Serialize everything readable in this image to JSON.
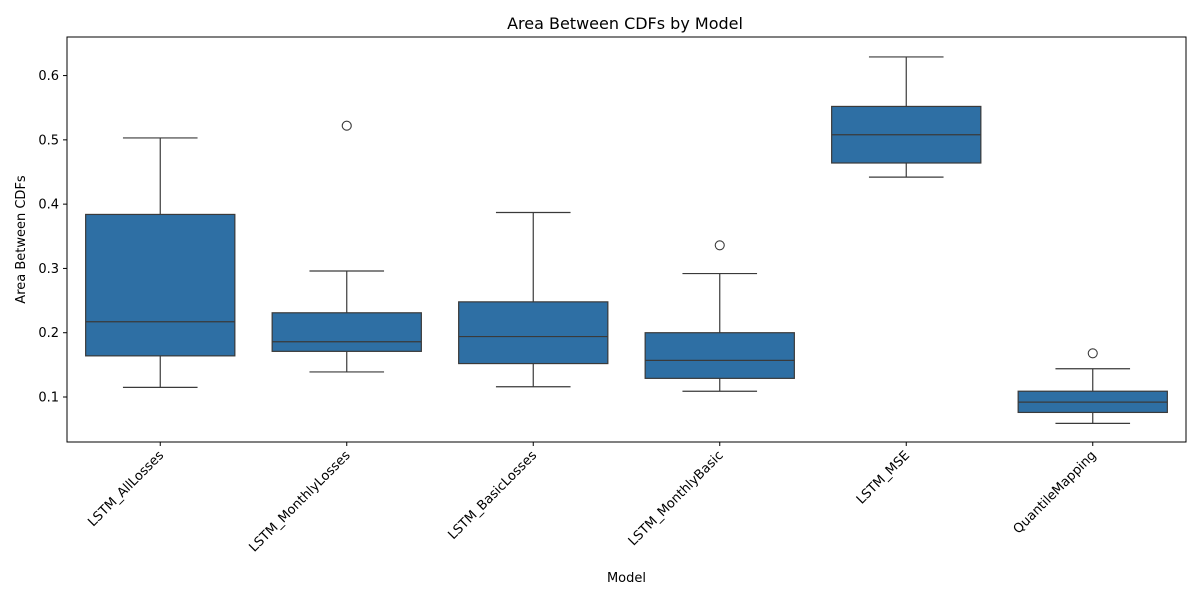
{
  "chart_data": {
    "type": "box",
    "title": "Area Between CDFs by Model",
    "xlabel": "Model",
    "ylabel": "Area Between CDFs",
    "ylim": [
      0.03,
      0.66
    ],
    "yticks": [
      "0.1",
      "0.2",
      "0.3",
      "0.4",
      "0.5",
      "0.6"
    ],
    "grid": false,
    "categories": [
      "LSTM_AllLosses",
      "LSTM_MonthlyLosses",
      "LSTM_BasicLosses",
      "LSTM_MonthlyBasic",
      "LSTM_MSE",
      "QuantileMapping"
    ],
    "series": [
      {
        "color": "#2e6fa4",
        "boxes": [
          {
            "whisker_low": 0.115,
            "q1": 0.164,
            "median": 0.217,
            "q3": 0.384,
            "whisker_high": 0.503,
            "outliers": []
          },
          {
            "whisker_low": 0.139,
            "q1": 0.171,
            "median": 0.186,
            "q3": 0.231,
            "whisker_high": 0.296,
            "outliers": [
              0.522
            ]
          },
          {
            "whisker_low": 0.116,
            "q1": 0.152,
            "median": 0.194,
            "q3": 0.248,
            "whisker_high": 0.387,
            "outliers": []
          },
          {
            "whisker_low": 0.109,
            "q1": 0.129,
            "median": 0.157,
            "q3": 0.2,
            "whisker_high": 0.292,
            "outliers": [
              0.336
            ]
          },
          {
            "whisker_low": 0.442,
            "q1": 0.464,
            "median": 0.508,
            "q3": 0.552,
            "whisker_high": 0.629,
            "outliers": []
          },
          {
            "whisker_low": 0.059,
            "q1": 0.076,
            "median": 0.092,
            "q3": 0.109,
            "whisker_high": 0.144,
            "outliers": [
              0.168
            ]
          }
        ]
      }
    ]
  }
}
